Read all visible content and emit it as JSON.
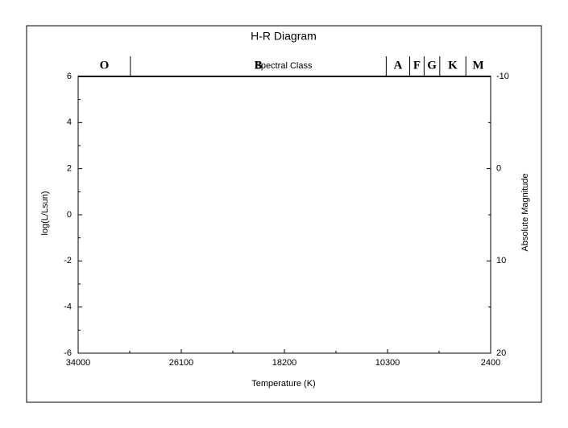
{
  "chart_data": {
    "type": "scatter",
    "title": "H-R Diagram",
    "x_label": "Temperature (K)",
    "y_label": "log(L/Lsun)",
    "y2_label": "Absolute Magnitude",
    "xlim": [
      34000,
      2400
    ],
    "xticks": [
      34000,
      26100,
      18200,
      10300,
      2400
    ],
    "xminorticks": [
      30050,
      22150,
      14250,
      6350
    ],
    "ylim": [
      -6,
      6
    ],
    "yticks": [
      -6,
      -4,
      -2,
      0,
      2,
      4,
      6
    ],
    "yminorticks": [
      -5,
      -3,
      -1,
      1,
      3,
      5
    ],
    "y2lim": [
      20,
      -10
    ],
    "y2ticks": [
      -10,
      0,
      10,
      20
    ],
    "y2minorticks": [
      -5,
      5,
      15
    ],
    "spectral_classes": {
      "label": "Spectral Class",
      "names": [
        "O",
        "B",
        "A",
        "F",
        "G",
        "K",
        "M"
      ],
      "bounds": [
        34000,
        30000,
        10400,
        8600,
        7500,
        6300,
        4300,
        2400
      ]
    },
    "series": []
  }
}
